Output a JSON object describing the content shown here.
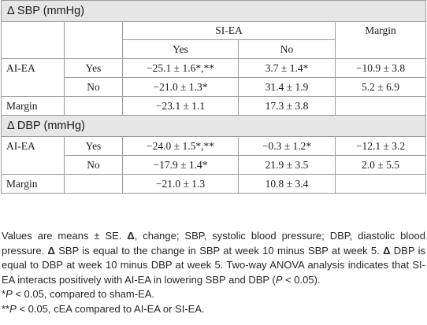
{
  "sbp_section": {
    "title": "Δ SBP (mmHg)",
    "header": {
      "group": "SI-EA",
      "margin": "Margin",
      "yes": "Yes",
      "no": "No"
    },
    "rows": [
      {
        "group": "AI-EA",
        "level": "Yes",
        "si_yes": "−25.1 ± 1.6*,**",
        "si_no": "3.7 ± 1.4*",
        "margin": "−10.9 ± 3.8"
      },
      {
        "group": "",
        "level": "No",
        "si_yes": "−21.0 ± 1.3*",
        "si_no": "31.4 ± 1.9",
        "margin": "5.2 ± 6.9"
      }
    ],
    "margin_row": {
      "label": "Margin",
      "si_yes": "−23.1 ± 1.1",
      "si_no": "17.3 ± 3.8",
      "margin": ""
    }
  },
  "dbp_section": {
    "title": "Δ DBP (mmHg)",
    "rows": [
      {
        "group": "AI-EA",
        "level": "Yes",
        "si_yes": "−24.0 ± 1.5*,**",
        "si_no": "−0.3 ± 1.2*",
        "margin": "−12.1 ± 3.2"
      },
      {
        "group": "",
        "level": "No",
        "si_yes": "−17.9 ± 1.4*",
        "si_no": "21.9 ± 3.5",
        "margin": "2.0 ± 5.5"
      }
    ],
    "margin_row": {
      "label": "Margin",
      "si_yes": "−21.0 ± 1.3",
      "si_no": "10.8 ± 3.4",
      "margin": ""
    }
  },
  "notes": {
    "para_1": "Values are means ± SE.",
    "delta_sym": "Δ",
    "para_2": ", change; SBP, systolic blood pressure; DBP, diastolic blood pressure.",
    "para_3": "SBP is equal to the change in SBP at week 10 minus SBP at week 5.",
    "para_4": "DBP is equal to DBP at week 10 minus DBP at week 5. Two-way ANOVA analysis indicates that SI-EA interacts positively with AI-EA in lowering SBP and DBP (",
    "p_italic": "P",
    "para_5": " < 0.05).",
    "fn1_mark": "*",
    "fn1_text": " < 0.05, compared to sham-EA.",
    "fn2_mark": "**",
    "fn2_text": " < 0.05, cEA compared to AI-EA or SI-EA."
  }
}
